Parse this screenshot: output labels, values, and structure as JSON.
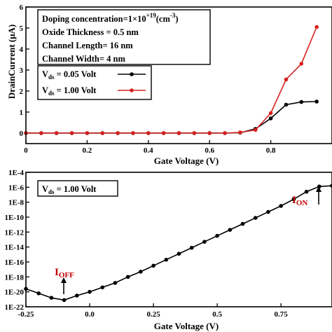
{
  "chart_data": [
    {
      "type": "line",
      "xlabel": "Gate Voltage (V)",
      "ylabel": "DrainCurrent (μA)",
      "xlim": [
        0,
        1.0
      ],
      "ylim": [
        -0.5,
        6
      ],
      "x_ticks": [
        "0",
        "0.2",
        "0.4",
        "0.6",
        "0.8"
      ],
      "y_ticks": [
        "0",
        "1",
        "2",
        "3",
        "4",
        "5",
        "6"
      ],
      "info_box": {
        "line1_main": "Doping  concentration=1×10",
        "line1_sup": "+19",
        "line1_end": "(cm",
        "line1_sup2": "-3",
        "line1_close": ")",
        "line2": "Oxide Thickness = 0.5 nm",
        "line3": "Channel Length= 16 nm",
        "line4": "Channel Width= 4 nm"
      },
      "legend": [
        {
          "prefix": "V",
          "sub": "ds",
          "text": " = 0.05 Volt",
          "color": "#000000"
        },
        {
          "prefix": "V",
          "sub": "ds",
          "text": " = 1.00 Volt",
          "color": "#d62020"
        }
      ],
      "series": [
        {
          "color": "#000000",
          "x": [
            0,
            0.05,
            0.1,
            0.15,
            0.2,
            0.25,
            0.3,
            0.35,
            0.4,
            0.45,
            0.5,
            0.55,
            0.6,
            0.65,
            0.7,
            0.75,
            0.8,
            0.85,
            0.9,
            0.95
          ],
          "y": [
            0,
            0,
            0,
            0,
            0,
            0,
            0,
            0,
            0,
            0,
            0,
            0,
            0,
            0,
            0.02,
            0.2,
            0.7,
            1.35,
            1.48,
            1.5
          ]
        },
        {
          "color": "#d62020",
          "x": [
            0,
            0.05,
            0.1,
            0.15,
            0.2,
            0.25,
            0.3,
            0.35,
            0.4,
            0.45,
            0.5,
            0.55,
            0.6,
            0.65,
            0.7,
            0.75,
            0.8,
            0.85,
            0.9,
            0.95
          ],
          "y": [
            0,
            0,
            0,
            0,
            0,
            0,
            0,
            0,
            0,
            0,
            0,
            0,
            0,
            0,
            0.03,
            0.15,
            0.95,
            2.55,
            3.3,
            5.05
          ]
        }
      ]
    },
    {
      "type": "line",
      "xlabel": "Gate Voltage (V)",
      "ylabel": "",
      "log_y": true,
      "xlim": [
        -0.25,
        0.95
      ],
      "ylim_exp": [
        -22,
        -4
      ],
      "x_ticks": [
        "-0.25",
        "0.0",
        "0.25",
        "0.5",
        "0.75"
      ],
      "y_ticks": [
        "1E-4",
        "1E-6",
        "1E-8",
        "1E-10",
        "1E-12",
        "1E-14",
        "1E-16",
        "1E-18",
        "1E-20",
        "1E-22"
      ],
      "legend_box": {
        "prefix": "V",
        "sub": "ds",
        "text": " = 1.00 Volt"
      },
      "annotations": [
        {
          "main": "I",
          "sub": "OFF",
          "x": -0.1,
          "arrow": "up"
        },
        {
          "main": "I",
          "sub": "ON",
          "x": 0.95,
          "arrow": "up"
        }
      ],
      "series": [
        {
          "color": "#000000",
          "x": [
            -0.25,
            -0.2,
            -0.15,
            -0.1,
            -0.05,
            0.0,
            0.05,
            0.1,
            0.15,
            0.2,
            0.25,
            0.3,
            0.35,
            0.4,
            0.45,
            0.5,
            0.55,
            0.6,
            0.65,
            0.7,
            0.75,
            0.8,
            0.85,
            0.9,
            0.95
          ],
          "log10y": [
            -19.6,
            -20.2,
            -20.8,
            -21.1,
            -20.5,
            -20.0,
            -19.4,
            -18.8,
            -18.0,
            -17.3,
            -16.5,
            -15.7,
            -14.9,
            -14.1,
            -13.3,
            -12.5,
            -11.7,
            -10.9,
            -10.1,
            -9.3,
            -8.5,
            -7.6,
            -6.6,
            -5.9,
            -5.8
          ]
        }
      ]
    }
  ]
}
